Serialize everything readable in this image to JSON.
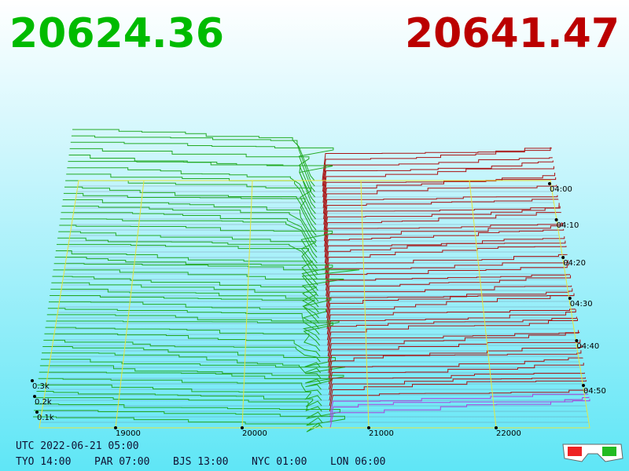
{
  "header": {
    "bid": "20624.36",
    "ask": "20641.47"
  },
  "axes": {
    "depth_labels": [
      "0.3k",
      "0.2k",
      "0.1k"
    ],
    "time_labels": [
      "04:00",
      "04:10",
      "04:20",
      "04:30",
      "04:40",
      "04:50"
    ],
    "price_labels": [
      "19000",
      "20000",
      "21000",
      "22000"
    ]
  },
  "footer": {
    "utc": "UTC 2022-06-21 05:00",
    "zones": [
      "TYO 14:00",
      "PAR 07:00",
      "BJS 13:00",
      "NYC 01:00",
      "LON 06:00"
    ]
  }
}
